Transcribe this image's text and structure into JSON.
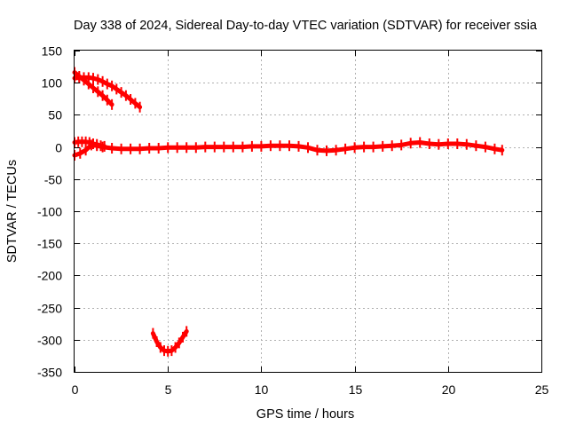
{
  "chart_data": {
    "type": "scatter",
    "title": "Day 338 of 2024, Sidereal Day-to-day VTEC variation (SDTVAR) for receiver ssia",
    "xlabel": "GPS time / hours",
    "ylabel": "SDTVAR / TECUs",
    "xlim": [
      0,
      25
    ],
    "ylim": [
      -350,
      150
    ],
    "xticks": [
      0,
      5,
      10,
      15,
      20,
      25
    ],
    "yticks": [
      150,
      100,
      50,
      0,
      -50,
      -100,
      -150,
      -200,
      -250,
      -300,
      -350
    ],
    "grid": true,
    "legend": "none",
    "color": "#ff0000",
    "series": [
      {
        "x": [
          0.0,
          0.25,
          0.5,
          0.75,
          1.0,
          1.25,
          1.5,
          1.75,
          2.0,
          2.25,
          2.5,
          2.75,
          3.0,
          3.25,
          3.5
        ],
        "y": [
          107,
          108,
          108,
          108,
          107,
          105,
          102,
          98,
          95,
          90,
          85,
          80,
          74,
          68,
          62
        ]
      },
      {
        "x": [
          0.0,
          0.25,
          0.5,
          0.75,
          1.0,
          1.25,
          1.5,
          1.75,
          2.0
        ],
        "y": [
          116,
          110,
          104,
          98,
          92,
          86,
          80,
          73,
          66
        ]
      },
      {
        "x": [
          4.2,
          4.4,
          4.6,
          4.8,
          5.0,
          5.2,
          5.4,
          5.6,
          5.8,
          6.0
        ],
        "y": [
          -290,
          -303,
          -312,
          -317,
          -318,
          -317,
          -312,
          -305,
          -296,
          -287
        ]
      },
      {
        "x": [
          0.0,
          0.3,
          0.6,
          0.9,
          1.2,
          1.5,
          2.0,
          2.5,
          3.0,
          3.5,
          4.0,
          4.5,
          5.0,
          5.5,
          6.0,
          6.5,
          7.0,
          7.5,
          8.0,
          8.5,
          9.0,
          9.5,
          10.0,
          10.5,
          11.0,
          11.5,
          12.0,
          12.5,
          13.0,
          13.5,
          14.0,
          14.5,
          15.0,
          15.5,
          16.0,
          16.5,
          17.0,
          17.5,
          18.0,
          18.5,
          19.0,
          19.5,
          20.0,
          20.5,
          21.0,
          21.5,
          22.0,
          22.5,
          22.9
        ],
        "y": [
          -13,
          -10,
          -5,
          3,
          2,
          0,
          -2,
          -3,
          -3,
          -3,
          -2,
          -2,
          -1,
          -1,
          -1,
          -1,
          0,
          0,
          0,
          0,
          0,
          1,
          1,
          2,
          2,
          2,
          1,
          -1,
          -5,
          -6,
          -5,
          -3,
          -1,
          0,
          0,
          1,
          2,
          3,
          6,
          7,
          5,
          4,
          5,
          5,
          4,
          2,
          0,
          -3,
          -5
        ]
      },
      {
        "x": [
          0.0,
          0.2,
          0.4,
          0.6,
          0.8,
          1.0,
          1.2,
          1.4,
          1.6
        ],
        "y": [
          7,
          8,
          8,
          8,
          7,
          5,
          4,
          2,
          1
        ]
      }
    ]
  }
}
